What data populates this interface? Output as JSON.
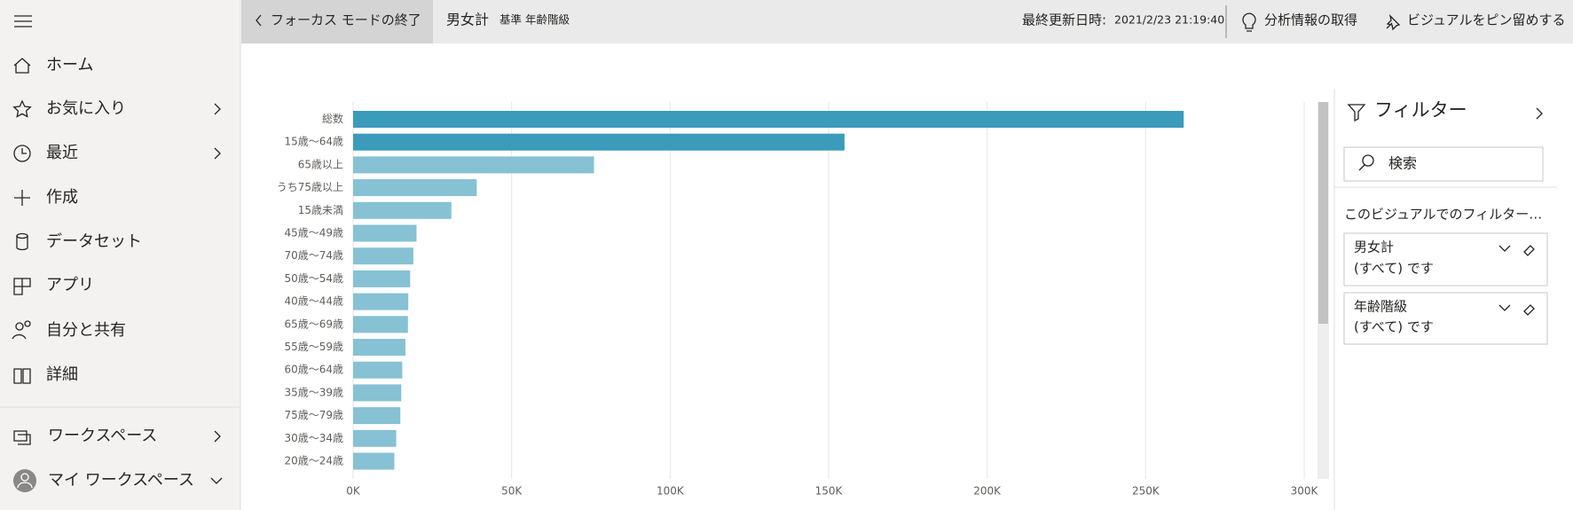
{
  "nav": {
    "items": [
      "ホーム",
      "お気に入り",
      "最近",
      "作成",
      "データセット",
      "アプリ",
      "自分と共有",
      "詳細"
    ],
    "workspaces": "ワークスペース",
    "my_workspace": "マイ ワークスペース"
  },
  "header": {
    "back": "フォーカス モードの終了",
    "title": "男女計",
    "subtitle": "基準 年齢階級",
    "updated_label": "最終更新日時:",
    "updated_value": "2021/2/23 21:19:40",
    "insights": "分析情報の取得",
    "pin": "ビジュアルをピン留めする"
  },
  "chart_data": {
    "type": "bar",
    "orientation": "horizontal",
    "categories": [
      "総数",
      "15歳～64歳",
      "65歳以上",
      "うち75歳以上",
      "15歳未満",
      "45歳～49歳",
      "70歳～74歳",
      "50歳～54歳",
      "40歳～44歳",
      "65歳～69歳",
      "55歳～59歳",
      "60歳～64歳",
      "35歳～39歳",
      "75歳～79歳",
      "30歳～34歳",
      "20歳～24歳"
    ],
    "values": [
      262000,
      155000,
      76000,
      39000,
      31000,
      20000,
      19000,
      18000,
      17400,
      17300,
      16500,
      15500,
      15200,
      14900,
      13600,
      13000
    ],
    "colors": [
      "#3a9bbb",
      "#3a9bbb",
      "#86c1d4",
      "#86c1d4",
      "#86c1d4",
      "#86c1d4",
      "#86c1d4",
      "#86c1d4",
      "#86c1d4",
      "#86c1d4",
      "#86c1d4",
      "#86c1d4",
      "#86c1d4",
      "#86c1d4",
      "#86c1d4",
      "#86c1d4"
    ],
    "xlim": [
      0,
      300000
    ],
    "xticks": [
      {
        "value": 0,
        "label": "0K"
      },
      {
        "value": 50000,
        "label": "50K"
      },
      {
        "value": 100000,
        "label": "100K"
      },
      {
        "value": 150000,
        "label": "150K"
      },
      {
        "value": 200000,
        "label": "200K"
      },
      {
        "value": 250000,
        "label": "250K"
      },
      {
        "value": 300000,
        "label": "300K"
      }
    ],
    "grid": true
  },
  "filters": {
    "title": "フィルター",
    "search": "検索",
    "section": "このビジュアルでのフィルター…",
    "cards": [
      {
        "field": "男女計",
        "value": "(すべて) です"
      },
      {
        "field": "年齢階級",
        "value": "(すべて) です"
      }
    ]
  }
}
